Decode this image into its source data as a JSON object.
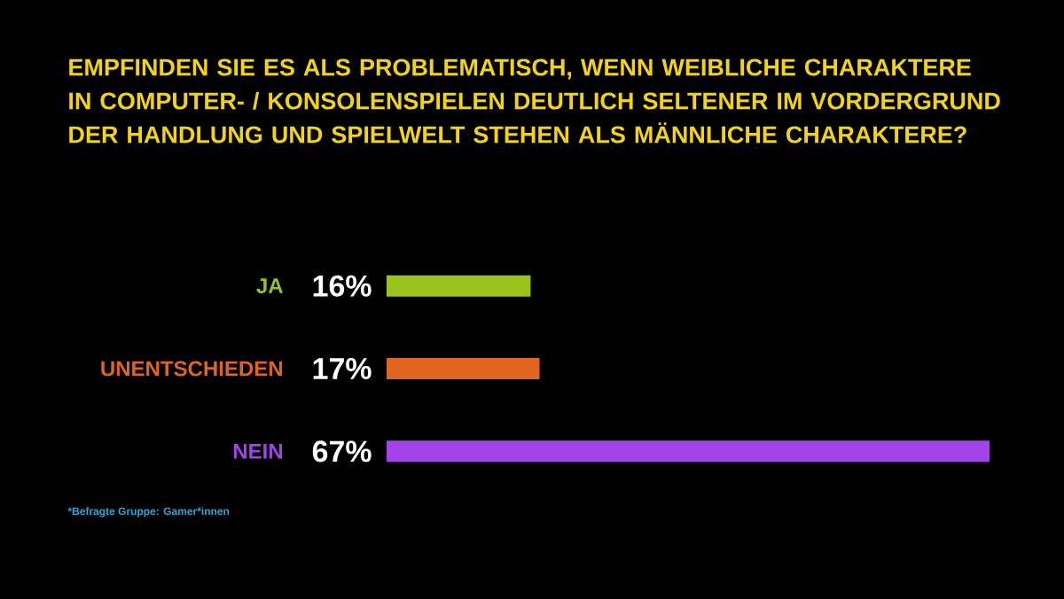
{
  "chart_data": {
    "type": "bar",
    "orientation": "horizontal",
    "title": "EMPFINDEN SIE ES ALS PROBLEMATISCH, WENN WEIBLICHE CHARAKTERE IN COMPUTER- / KONSOLENSPIELEN DEUTLICH SELTENER IM VORDERGRUND DER HANDLUNG UND SPIELWELT STEHEN ALS MÄNNLICHE CHARAKTERE?",
    "categories": [
      "JA",
      "UNENTSCHIEDEN",
      "NEIN"
    ],
    "values": [
      16,
      17,
      67
    ],
    "value_labels": [
      "16%",
      "17%",
      "67%"
    ],
    "colors": [
      "#9ac31c",
      "#e0661e",
      "#a244e8"
    ],
    "annotations": [
      "*Befragte Gruppe: Gamer*innen"
    ]
  }
}
